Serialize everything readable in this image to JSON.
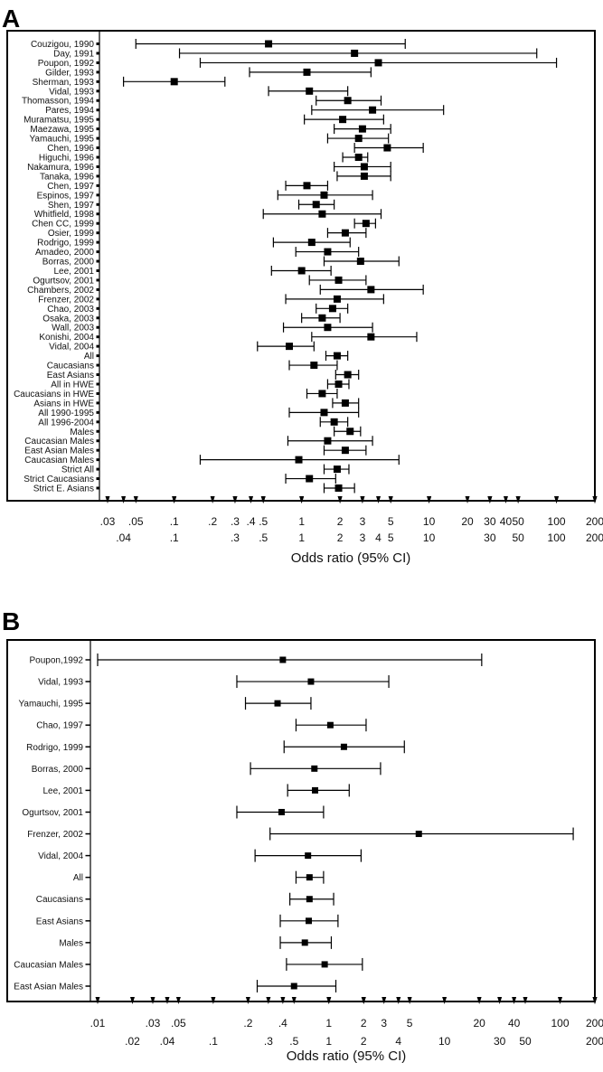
{
  "chart_data": [
    {
      "type": "forest",
      "panel": "A",
      "xlabel": "Odds ratio (95% CI)",
      "x_scale": "log",
      "xlim": [
        0.03,
        200
      ],
      "ticks_top_row": [
        ".03",
        ".05",
        ".1",
        ".2",
        ".3",
        ".4",
        ".5",
        "1",
        "2",
        "3",
        "5",
        "10",
        "20",
        "30",
        "40",
        "50",
        "100",
        "200"
      ],
      "ticks_bottom_row": [
        ".04",
        ".1",
        ".3",
        ".5",
        "1",
        "2",
        "3",
        "4",
        "5",
        "10",
        "30",
        "50",
        "100",
        "200"
      ],
      "rows": [
        {
          "label": "Couzigou, 1990",
          "or": 0.55,
          "lo": 0.05,
          "hi": 6.5
        },
        {
          "label": "Day, 1991",
          "or": 2.6,
          "lo": 0.11,
          "hi": 70
        },
        {
          "label": "Poupon, 1992",
          "or": 4.0,
          "lo": 0.16,
          "hi": 100
        },
        {
          "label": "Gilder, 1993",
          "or": 1.1,
          "lo": 0.39,
          "hi": 3.5
        },
        {
          "label": "Sherman, 1993",
          "or": 0.1,
          "lo": 0.04,
          "hi": 0.25
        },
        {
          "label": "Vidal, 1993",
          "or": 1.15,
          "lo": 0.55,
          "hi": 2.3
        },
        {
          "label": "Thomasson, 1994",
          "or": 2.3,
          "lo": 1.3,
          "hi": 4.2
        },
        {
          "label": "Pares, 1994",
          "or": 3.6,
          "lo": 1.2,
          "hi": 13
        },
        {
          "label": "Muramatsu, 1995",
          "or": 2.1,
          "lo": 1.05,
          "hi": 4.4
        },
        {
          "label": "Maezawa, 1995",
          "or": 3.0,
          "lo": 1.8,
          "hi": 5.0
        },
        {
          "label": "Yamauchi, 1995",
          "or": 2.8,
          "lo": 1.6,
          "hi": 4.8
        },
        {
          "label": "Chen, 1996",
          "or": 4.7,
          "lo": 2.6,
          "hi": 9.0
        },
        {
          "label": "Higuchi, 1996",
          "or": 2.8,
          "lo": 2.1,
          "hi": 3.3
        },
        {
          "label": "Nakamura, 1996",
          "or": 3.1,
          "lo": 1.8,
          "hi": 5.0
        },
        {
          "label": "Tanaka, 1996",
          "or": 3.1,
          "lo": 1.9,
          "hi": 5.0
        },
        {
          "label": "Chen, 1997",
          "or": 1.1,
          "lo": 0.75,
          "hi": 1.6
        },
        {
          "label": "Espinos, 1997",
          "or": 1.5,
          "lo": 0.65,
          "hi": 3.6
        },
        {
          "label": "Shen, 1997",
          "or": 1.3,
          "lo": 0.95,
          "hi": 1.8
        },
        {
          "label": "Whitfield, 1998",
          "or": 1.45,
          "lo": 0.5,
          "hi": 4.2
        },
        {
          "label": "Chen CC, 1999",
          "or": 3.2,
          "lo": 2.6,
          "hi": 3.8
        },
        {
          "label": "Osier, 1999",
          "or": 2.2,
          "lo": 1.6,
          "hi": 3.2
        },
        {
          "label": "Rodrigo, 1999",
          "or": 1.2,
          "lo": 0.6,
          "hi": 2.4
        },
        {
          "label": "Amadeo, 2000",
          "or": 1.6,
          "lo": 0.9,
          "hi": 2.8
        },
        {
          "label": "Borras, 2000",
          "or": 2.9,
          "lo": 1.5,
          "hi": 5.8
        },
        {
          "label": "Lee, 2001",
          "or": 1.0,
          "lo": 0.58,
          "hi": 1.7
        },
        {
          "label": "Ogurtsov, 2001",
          "or": 1.95,
          "lo": 1.15,
          "hi": 3.2
        },
        {
          "label": "Chambers, 2002",
          "or": 3.5,
          "lo": 1.4,
          "hi": 9.0
        },
        {
          "label": "Frenzer, 2002",
          "or": 1.9,
          "lo": 0.75,
          "hi": 4.4
        },
        {
          "label": "Chao, 2003",
          "or": 1.75,
          "lo": 1.3,
          "hi": 2.3
        },
        {
          "label": "Osaka, 2003",
          "or": 1.45,
          "lo": 1.0,
          "hi": 2.0
        },
        {
          "label": "Wall, 2003",
          "or": 1.6,
          "lo": 0.72,
          "hi": 3.6
        },
        {
          "label": "Konishi, 2004",
          "or": 3.5,
          "lo": 1.2,
          "hi": 8.0
        },
        {
          "label": "Vidal, 2004",
          "or": 0.8,
          "lo": 0.45,
          "hi": 1.25
        },
        {
          "label": "All",
          "or": 1.9,
          "lo": 1.55,
          "hi": 2.3
        },
        {
          "label": "Caucasians",
          "or": 1.25,
          "lo": 0.8,
          "hi": 1.9
        },
        {
          "label": "East Asians",
          "or": 2.3,
          "lo": 1.85,
          "hi": 2.8
        },
        {
          "label": "All in HWE",
          "or": 1.95,
          "lo": 1.6,
          "hi": 2.35
        },
        {
          "label": "Caucasians in HWE",
          "or": 1.45,
          "lo": 1.1,
          "hi": 1.9
        },
        {
          "label": "Asians in HWE",
          "or": 2.2,
          "lo": 1.75,
          "hi": 2.8
        },
        {
          "label": "All 1990-1995",
          "or": 1.5,
          "lo": 0.8,
          "hi": 2.8
        },
        {
          "label": "All 1996-2004",
          "or": 1.8,
          "lo": 1.4,
          "hi": 2.3
        },
        {
          "label": "Males",
          "or": 2.4,
          "lo": 1.8,
          "hi": 2.9
        },
        {
          "label": "Caucasian Males",
          "or": 1.6,
          "lo": 0.78,
          "hi": 3.6
        },
        {
          "label": "East Asian Males",
          "or": 2.2,
          "lo": 1.5,
          "hi": 3.2
        },
        {
          "label": "Caucasian Males",
          "or": 0.95,
          "lo": 0.16,
          "hi": 5.8
        },
        {
          "label": "Strict All",
          "or": 1.9,
          "lo": 1.5,
          "hi": 2.35
        },
        {
          "label": "Strict Caucasians",
          "or": 1.15,
          "lo": 0.75,
          "hi": 1.85
        },
        {
          "label": "Strict E. Asians",
          "or": 1.95,
          "lo": 1.5,
          "hi": 2.6
        }
      ]
    },
    {
      "type": "forest",
      "panel": "B",
      "xlabel": "Odds ratio (95% CI)",
      "x_scale": "log",
      "xlim": [
        0.01,
        200
      ],
      "ticks_top_row": [
        ".01",
        ".03",
        ".05",
        ".2",
        ".4",
        "1",
        "2",
        "3",
        "5",
        "20",
        "40",
        "100",
        "200"
      ],
      "ticks_bottom_row": [
        ".02",
        ".04",
        ".1",
        ".3",
        ".5",
        "1",
        "2",
        "4",
        "10",
        "30",
        "50",
        "200"
      ],
      "rows": [
        {
          "label": "Poupon,1992",
          "or": 0.4,
          "lo": 0.01,
          "hi": 21
        },
        {
          "label": "Vidal, 1993",
          "or": 0.7,
          "lo": 0.16,
          "hi": 3.3
        },
        {
          "label": "Yamauchi, 1995",
          "or": 0.36,
          "lo": 0.19,
          "hi": 0.7
        },
        {
          "label": "Chao, 1997",
          "or": 1.03,
          "lo": 0.52,
          "hi": 2.1
        },
        {
          "label": "Rodrigo, 1999",
          "or": 1.35,
          "lo": 0.41,
          "hi": 4.5
        },
        {
          "label": "Borras, 2000",
          "or": 0.75,
          "lo": 0.21,
          "hi": 2.8
        },
        {
          "label": "Lee, 2001",
          "or": 0.76,
          "lo": 0.44,
          "hi": 1.5
        },
        {
          "label": "Ogurtsov, 2001",
          "or": 0.39,
          "lo": 0.16,
          "hi": 0.9
        },
        {
          "label": "Frenzer, 2002",
          "or": 6.0,
          "lo": 0.31,
          "hi": 130
        },
        {
          "label": "Vidal, 2004",
          "or": 0.66,
          "lo": 0.23,
          "hi": 1.9
        },
        {
          "label": "All",
          "or": 0.68,
          "lo": 0.52,
          "hi": 0.9
        },
        {
          "label": "Caucasians",
          "or": 0.68,
          "lo": 0.46,
          "hi": 1.1
        },
        {
          "label": "East Asians",
          "or": 0.67,
          "lo": 0.38,
          "hi": 1.2
        },
        {
          "label": "Males",
          "or": 0.62,
          "lo": 0.38,
          "hi": 1.05
        },
        {
          "label": "Caucasian Males",
          "or": 0.92,
          "lo": 0.43,
          "hi": 1.95
        },
        {
          "label": "East Asian Males",
          "or": 0.5,
          "lo": 0.24,
          "hi": 1.15
        }
      ]
    }
  ]
}
